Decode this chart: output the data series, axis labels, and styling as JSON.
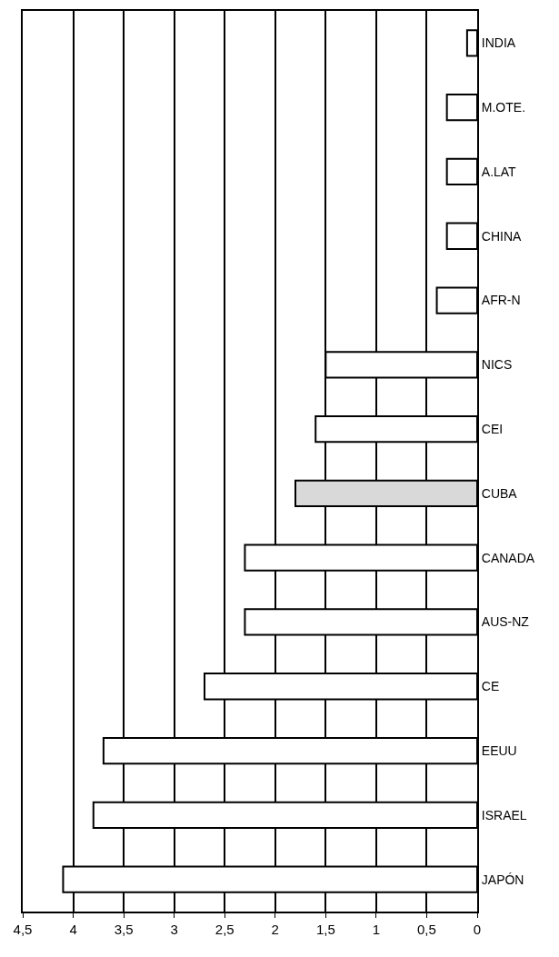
{
  "chart_data": {
    "type": "bar",
    "orientation": "horizontal",
    "categories": [
      "INDIA",
      "M.OTE.",
      "A.LAT",
      "CHINA",
      "AFR-N",
      "NICS",
      "CEI",
      "CUBA",
      "CANADA",
      "AUS-NZ",
      "CE",
      "EEUU",
      "ISRAEL",
      "JAPÓN"
    ],
    "values": [
      0.1,
      0.3,
      0.3,
      0.3,
      0.4,
      1.5,
      1.6,
      1.8,
      2.3,
      2.3,
      2.7,
      3.7,
      3.8,
      4.1
    ],
    "colors": [
      "#ffffff",
      "#ffffff",
      "#ffffff",
      "#ffffff",
      "#ffffff",
      "#ffffff",
      "#ffffff",
      "#d9d9d9",
      "#ffffff",
      "#ffffff",
      "#ffffff",
      "#ffffff",
      "#ffffff",
      "#ffffff"
    ],
    "xlim": [
      4.5,
      0
    ],
    "xticks": [
      {
        "value": 4.5,
        "label": "4,5"
      },
      4,
      {
        "value": 3.5,
        "label": "3,5"
      },
      3,
      {
        "value": 2.5,
        "label": "2,5"
      },
      2,
      {
        "value": 1.5,
        "label": "1,5"
      },
      1,
      {
        "value": 0.5,
        "label": "0,5"
      },
      0
    ],
    "grid": "x"
  }
}
